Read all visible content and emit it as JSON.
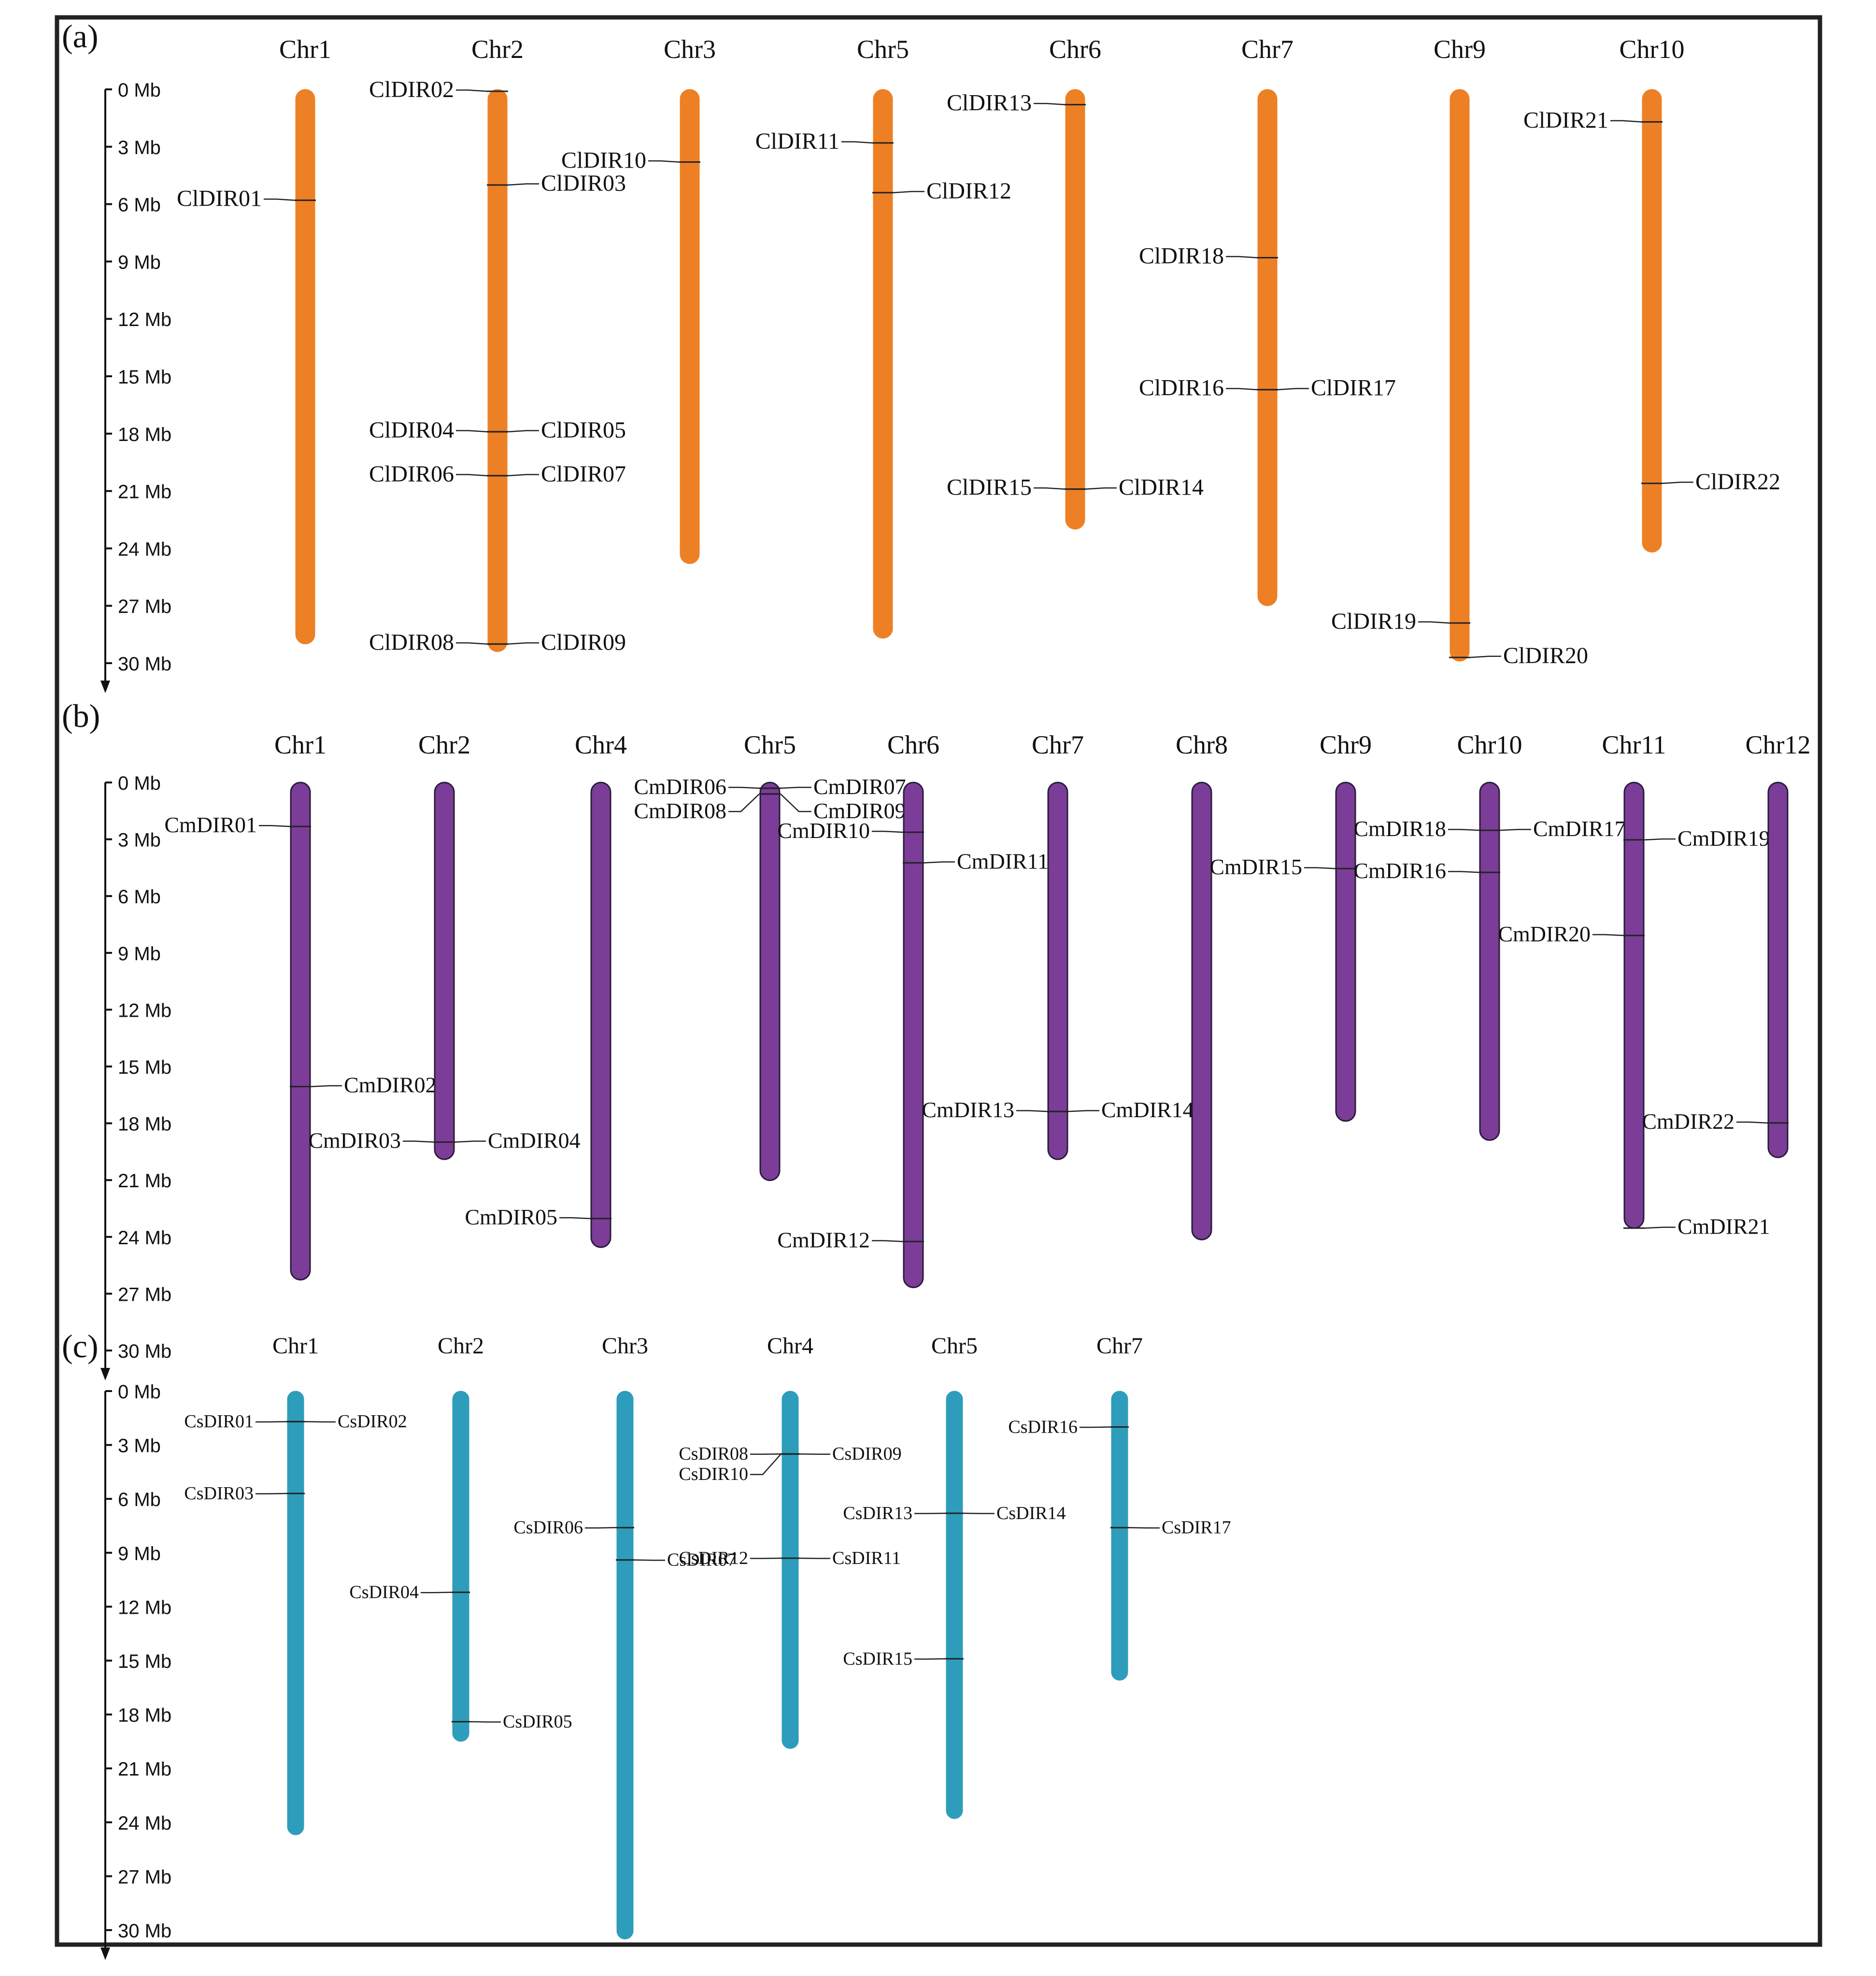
{
  "panels": [
    {
      "key": "a",
      "label": "(a)",
      "color": "#ED8024",
      "stroke": "#ED8024",
      "axis_ticks": [
        "0 Mb",
        "3 Mb",
        "6 Mb",
        "9 Mb",
        "12 Mb",
        "15 Mb",
        "18 Mb",
        "21 Mb",
        "24 Mb",
        "27 Mb",
        "30 Mb"
      ],
      "chromosomes": [
        {
          "name": "Chr1",
          "length_mb": 29.0,
          "genes": [
            {
              "name": "ClDIR01",
              "pos_mb": 5.8,
              "side": "L"
            }
          ]
        },
        {
          "name": "Chr2",
          "length_mb": 29.4,
          "genes": [
            {
              "name": "ClDIR02",
              "pos_mb": 0.1,
              "side": "L"
            },
            {
              "name": "ClDIR03",
              "pos_mb": 5.0,
              "side": "R"
            },
            {
              "name": "ClDIR04",
              "pos_mb": 17.9,
              "side": "L"
            },
            {
              "name": "ClDIR05",
              "pos_mb": 17.9,
              "side": "R"
            },
            {
              "name": "ClDIR06",
              "pos_mb": 20.2,
              "side": "L"
            },
            {
              "name": "ClDIR07",
              "pos_mb": 20.2,
              "side": "R"
            },
            {
              "name": "ClDIR08",
              "pos_mb": 29.0,
              "side": "L"
            },
            {
              "name": "ClDIR09",
              "pos_mb": 29.0,
              "side": "R"
            }
          ]
        },
        {
          "name": "Chr3",
          "length_mb": 24.8,
          "genes": [
            {
              "name": "ClDIR10",
              "pos_mb": 3.8,
              "side": "L"
            }
          ]
        },
        {
          "name": "Chr5",
          "length_mb": 28.7,
          "genes": [
            {
              "name": "ClDIR11",
              "pos_mb": 2.8,
              "side": "L"
            },
            {
              "name": "ClDIR12",
              "pos_mb": 5.4,
              "side": "R"
            }
          ]
        },
        {
          "name": "Chr6",
          "length_mb": 23.0,
          "genes": [
            {
              "name": "ClDIR13",
              "pos_mb": 0.8,
              "side": "L"
            },
            {
              "name": "ClDIR14",
              "pos_mb": 20.9,
              "side": "R"
            },
            {
              "name": "ClDIR15",
              "pos_mb": 20.9,
              "side": "L"
            }
          ]
        },
        {
          "name": "Chr7",
          "length_mb": 27.0,
          "genes": [
            {
              "name": "ClDIR18",
              "pos_mb": 8.8,
              "side": "L"
            },
            {
              "name": "ClDIR16",
              "pos_mb": 15.7,
              "side": "L"
            },
            {
              "name": "ClDIR17",
              "pos_mb": 15.7,
              "side": "R"
            }
          ]
        },
        {
          "name": "Chr9",
          "length_mb": 29.9,
          "genes": [
            {
              "name": "ClDIR19",
              "pos_mb": 27.9,
              "side": "L"
            },
            {
              "name": "ClDIR20",
              "pos_mb": 29.7,
              "side": "R"
            }
          ]
        },
        {
          "name": "Chr10",
          "length_mb": 24.2,
          "genes": [
            {
              "name": "ClDIR21",
              "pos_mb": 1.7,
              "side": "L"
            },
            {
              "name": "ClDIR22",
              "pos_mb": 20.6,
              "side": "R"
            }
          ]
        }
      ]
    },
    {
      "key": "b",
      "label": "(b)",
      "color": "#7B3D97",
      "stroke": "#2A1B3A",
      "axis_ticks": [
        "0 Mb",
        "3 Mb",
        "6 Mb",
        "9 Mb",
        "12 Mb",
        "15 Mb",
        "18 Mb",
        "21 Mb",
        "24 Mb",
        "27 Mb",
        "30 Mb"
      ],
      "chromosomes": [
        {
          "name": "Chr1",
          "length_mb": 26.0,
          "genes": [
            {
              "name": "CmDIR01",
              "pos_mb": 2.3,
              "side": "L"
            },
            {
              "name": "CmDIR02",
              "pos_mb": 15.9,
              "side": "R"
            }
          ]
        },
        {
          "name": "Chr2",
          "length_mb": 19.7,
          "genes": [
            {
              "name": "CmDIR03",
              "pos_mb": 18.8,
              "side": "L"
            },
            {
              "name": "CmDIR04",
              "pos_mb": 18.8,
              "side": "R"
            }
          ]
        },
        {
          "name": "Chr4",
          "length_mb": 24.3,
          "genes": [
            {
              "name": "CmDIR05",
              "pos_mb": 22.8,
              "side": "L"
            }
          ]
        },
        {
          "name": "Chr5",
          "length_mb": 20.8,
          "genes": [
            {
              "name": "CmDIR06",
              "pos_mb": 0.3,
              "side": "L"
            },
            {
              "name": "CmDIR07",
              "pos_mb": 0.3,
              "side": "R"
            },
            {
              "name": "CmDIR08",
              "pos_mb": 0.6,
              "side": "L"
            },
            {
              "name": "CmDIR09",
              "pos_mb": 0.6,
              "side": "R"
            }
          ]
        },
        {
          "name": "Chr6",
          "length_mb": 26.4,
          "genes": [
            {
              "name": "CmDIR10",
              "pos_mb": 2.6,
              "side": "L"
            },
            {
              "name": "CmDIR11",
              "pos_mb": 4.2,
              "side": "R"
            },
            {
              "name": "CmDIR12",
              "pos_mb": 24.0,
              "side": "L"
            }
          ]
        },
        {
          "name": "Chr7",
          "length_mb": 19.7,
          "genes": [
            {
              "name": "CmDIR13",
              "pos_mb": 17.2,
              "side": "L"
            },
            {
              "name": "CmDIR14",
              "pos_mb": 17.2,
              "side": "R"
            }
          ]
        },
        {
          "name": "Chr8",
          "length_mb": 23.9,
          "genes": []
        },
        {
          "name": "Chr9",
          "length_mb": 17.7,
          "genes": [
            {
              "name": "CmDIR15",
              "pos_mb": 4.5,
              "side": "L"
            }
          ]
        },
        {
          "name": "Chr10",
          "length_mb": 18.7,
          "genes": [
            {
              "name": "CmDIR16",
              "pos_mb": 4.7,
              "side": "L"
            },
            {
              "name": "CmDIR17",
              "pos_mb": 2.5,
              "side": "R"
            },
            {
              "name": "CmDIR18",
              "pos_mb": 2.5,
              "side": "L"
            }
          ]
        },
        {
          "name": "Chr11",
          "length_mb": 23.3,
          "genes": [
            {
              "name": "CmDIR19",
              "pos_mb": 3.0,
              "side": "R"
            },
            {
              "name": "CmDIR20",
              "pos_mb": 8.0,
              "side": "L"
            },
            {
              "name": "CmDIR21",
              "pos_mb": 23.3,
              "side": "R"
            }
          ]
        },
        {
          "name": "Chr12",
          "length_mb": 19.6,
          "genes": [
            {
              "name": "CmDIR22",
              "pos_mb": 17.8,
              "side": "L"
            }
          ]
        }
      ]
    },
    {
      "key": "c",
      "label": "(c)",
      "color": "#2E9DBB",
      "stroke": "#2E9DBB",
      "axis_ticks": [
        "0 Mb",
        "3 Mb",
        "6 Mb",
        "9 Mb",
        "12 Mb",
        "15 Mb",
        "18 Mb",
        "21 Mb",
        "24 Mb",
        "27 Mb",
        "30 Mb"
      ],
      "chromosomes": [
        {
          "name": "Chr1",
          "length_mb": 24.7,
          "genes": [
            {
              "name": "CsDIR01",
              "pos_mb": 1.7,
              "side": "L"
            },
            {
              "name": "CsDIR02",
              "pos_mb": 1.7,
              "side": "R"
            },
            {
              "name": "CsDIR03",
              "pos_mb": 5.7,
              "side": "L"
            }
          ]
        },
        {
          "name": "Chr2",
          "length_mb": 19.5,
          "genes": [
            {
              "name": "CsDIR04",
              "pos_mb": 11.2,
              "side": "L"
            },
            {
              "name": "CsDIR05",
              "pos_mb": 18.4,
              "side": "R"
            }
          ]
        },
        {
          "name": "Chr3",
          "length_mb": 30.5,
          "genes": [
            {
              "name": "CsDIR06",
              "pos_mb": 7.6,
              "side": "L"
            },
            {
              "name": "CsDIR07",
              "pos_mb": 9.4,
              "side": "R"
            }
          ]
        },
        {
          "name": "Chr4",
          "length_mb": 19.9,
          "genes": [
            {
              "name": "CsDIR08",
              "pos_mb": 3.5,
              "side": "L"
            },
            {
              "name": "CsDIR09",
              "pos_mb": 3.5,
              "side": "R"
            },
            {
              "name": "CsDIR10",
              "pos_mb": 3.5,
              "side": "L"
            },
            {
              "name": "CsDIR11",
              "pos_mb": 9.3,
              "side": "R"
            },
            {
              "name": "CsDIR12",
              "pos_mb": 9.3,
              "side": "L"
            }
          ]
        },
        {
          "name": "Chr5",
          "length_mb": 23.8,
          "genes": [
            {
              "name": "CsDIR13",
              "pos_mb": 6.8,
              "side": "L"
            },
            {
              "name": "CsDIR14",
              "pos_mb": 6.8,
              "side": "R"
            },
            {
              "name": "CsDIR15",
              "pos_mb": 14.9,
              "side": "L"
            }
          ]
        },
        {
          "name": "Chr7",
          "length_mb": 16.1,
          "genes": [
            {
              "name": "CsDIR16",
              "pos_mb": 2.0,
              "side": "L"
            },
            {
              "name": "CsDIR17",
              "pos_mb": 7.6,
              "side": "R"
            }
          ]
        }
      ]
    }
  ]
}
